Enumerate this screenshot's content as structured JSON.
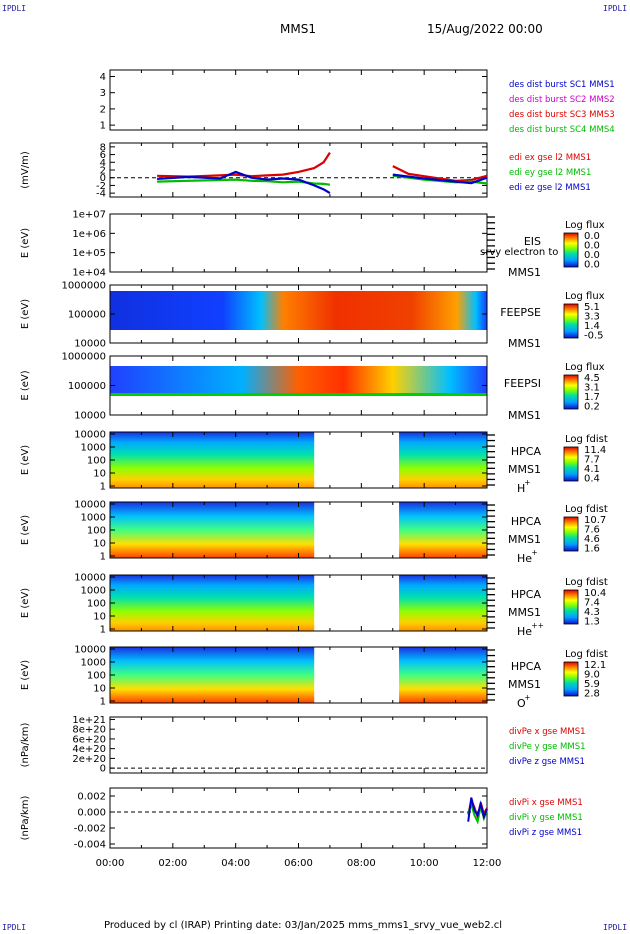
{
  "header": {
    "corner_left_top": "IPDLI",
    "corner_right_top": "IPDLI",
    "corner_left_bottom": "IPDLI",
    "corner_right_bottom": "IPDLI",
    "spacecraft": "MMS1",
    "datetime": "15/Aug/2022 00:00"
  },
  "footer": {
    "text": "Produced by cl (IRAP)   Printing date: 03/Jan/2025   mms_mms1_srvy_vue_web2.cl"
  },
  "colors": {
    "mms1": "#0000cc",
    "mms2": "#cc00cc",
    "mms3": "#dd0000",
    "mms4": "#00bb00",
    "red": "#dd0000",
    "green": "#00bb00",
    "blue": "#0000cc"
  },
  "chart_data": [
    {
      "type": "line",
      "panel": "dist",
      "yticks": [
        "1",
        "2",
        "3",
        "4"
      ],
      "ylim": [
        0.7,
        4.4
      ],
      "legend": [
        "des dist burst SC1 MMS1",
        "des dist burst SC2 MMS2",
        "des dist burst SC3 MMS3",
        "des dist burst SC4 MMS4"
      ]
    },
    {
      "type": "line",
      "panel": "efield",
      "ylabel": "(mV/m)",
      "yticks": [
        "-4",
        "-2",
        "0",
        "2",
        "4",
        "6",
        "8"
      ],
      "ylim": [
        -5,
        9
      ],
      "x_hours": [
        1.5,
        2.5,
        3.5,
        4.0,
        4.5,
        5.0,
        5.5,
        6.0,
        6.5,
        6.8,
        7.0,
        9.0,
        9.5,
        10.0,
        11.0,
        11.5,
        12.0
      ],
      "series": [
        {
          "name": "edi ex gse l2 MMS1",
          "values": [
            0.5,
            0.3,
            0.6,
            0.8,
            0.4,
            0.6,
            0.8,
            1.5,
            2.5,
            4.0,
            6.5,
            3.0,
            1.0,
            0.4,
            -0.8,
            -0.6,
            0.5
          ]
        },
        {
          "name": "edi ey gse l2 MMS1",
          "values": [
            -1.0,
            -0.8,
            -0.6,
            -0.5,
            -0.8,
            -0.9,
            -1.2,
            -1.0,
            -1.5,
            -1.6,
            -1.8,
            0.5,
            0.0,
            -0.5,
            -1.2,
            -1.0,
            -1.5
          ]
        },
        {
          "name": "edi ez gse l2 MMS1",
          "values": [
            -0.3,
            0.2,
            -0.2,
            1.5,
            0.0,
            -0.5,
            -0.2,
            -0.5,
            -2.0,
            -3.0,
            -4.0,
            0.8,
            0.3,
            -0.2,
            -1.0,
            -1.4,
            0.0
          ]
        }
      ]
    },
    {
      "type": "heatmap",
      "panel": "eis",
      "ylabel": "E (eV)",
      "yticks": [
        "1e+04",
        "1e+05",
        "1e+06",
        "1e+07"
      ],
      "labels": [
        "EIS",
        "MMS1"
      ],
      "stray_text": "srvy electron to",
      "colorbar": {
        "title": "Log flux",
        "ticks": [
          "0.0",
          "0.0",
          "0.0",
          "0.0"
        ]
      }
    },
    {
      "type": "heatmap",
      "panel": "feeps_e",
      "ylabel": "E (eV)",
      "yticks": [
        "10000",
        "100000",
        "1000000"
      ],
      "labels": [
        "FEEPSE",
        "MMS1"
      ],
      "colorbar": {
        "title": "Log flux",
        "ticks": [
          "5.1",
          "3.3",
          "1.4",
          "-0.5"
        ]
      }
    },
    {
      "type": "heatmap",
      "panel": "feeps_i",
      "ylabel": "E (eV)",
      "yticks": [
        "10000",
        "100000",
        "1000000"
      ],
      "labels": [
        "FEEPSI",
        "MMS1"
      ],
      "colorbar": {
        "title": "Log flux",
        "ticks": [
          "4.5",
          "3.1",
          "1.7",
          "0.2"
        ]
      }
    },
    {
      "type": "heatmap",
      "panel": "hpca_h",
      "ylabel": "E (eV)",
      "yticks": [
        "1",
        "10",
        "100",
        "1000",
        "10000"
      ],
      "labels": [
        "HPCA",
        "MMS1"
      ],
      "species": "H",
      "charge": "+",
      "data_gap": [
        6.5,
        9.2
      ],
      "colorbar": {
        "title": "Log fdist",
        "ticks": [
          "11.4",
          "7.7",
          "4.1",
          "0.4"
        ]
      }
    },
    {
      "type": "heatmap",
      "panel": "hpca_he1",
      "ylabel": "E (eV)",
      "yticks": [
        "1",
        "10",
        "100",
        "1000",
        "10000"
      ],
      "labels": [
        "HPCA",
        "MMS1"
      ],
      "species": "He",
      "charge": "+",
      "data_gap": [
        6.5,
        9.2
      ],
      "colorbar": {
        "title": "Log fdist",
        "ticks": [
          "10.7",
          "7.6",
          "4.6",
          "1.6"
        ]
      }
    },
    {
      "type": "heatmap",
      "panel": "hpca_he2",
      "ylabel": "E (eV)",
      "yticks": [
        "1",
        "10",
        "100",
        "1000",
        "10000"
      ],
      "labels": [
        "HPCA",
        "MMS1"
      ],
      "species": "He",
      "charge": "++",
      "data_gap": [
        6.5,
        9.2
      ],
      "colorbar": {
        "title": "Log fdist",
        "ticks": [
          "10.4",
          "7.4",
          "4.3",
          "1.3"
        ]
      }
    },
    {
      "type": "heatmap",
      "panel": "hpca_o",
      "ylabel": "E (eV)",
      "yticks": [
        "1",
        "10",
        "100",
        "1000",
        "10000"
      ],
      "labels": [
        "HPCA",
        "MMS1"
      ],
      "species": "O",
      "charge": "+",
      "data_gap": [
        6.5,
        9.2
      ],
      "colorbar": {
        "title": "Log fdist",
        "ticks": [
          "12.1",
          "9.0",
          "5.9",
          "2.8"
        ]
      }
    },
    {
      "type": "line",
      "panel": "divpe",
      "ylabel": "(nPa/km)",
      "yticks": [
        "0",
        "2e+20",
        "4e+20",
        "6e+20",
        "8e+20",
        "1e+21"
      ],
      "ylim": [
        -0.1,
        1.05
      ],
      "legend": [
        "divPe x gse MMS1",
        "divPe y gse MMS1",
        "divPe z gse MMS1"
      ]
    },
    {
      "type": "line",
      "panel": "divpi",
      "ylabel": "(nPa/km)",
      "yticks": [
        "-0.004",
        "-0.002",
        "0.000",
        "0.002"
      ],
      "ylim": [
        -0.0045,
        0.003
      ],
      "x_hours": [
        11.4,
        11.5,
        11.6,
        11.7,
        11.8,
        11.9,
        12.0
      ],
      "series": [
        {
          "name": "divPi x gse MMS1",
          "values": [
            -0.0003,
            0.0015,
            0.0006,
            -0.0006,
            0.0012,
            -0.0002,
            0.0005
          ]
        },
        {
          "name": "divPi y gse MMS1",
          "values": [
            -0.0002,
            0.001,
            -0.0004,
            -0.0012,
            0.0007,
            -0.0008,
            0.0002
          ]
        },
        {
          "name": "divPi z gse MMS1",
          "values": [
            -0.0012,
            0.0018,
            0.0002,
            -0.0004,
            0.001,
            -0.0006,
            0.0004
          ]
        }
      ]
    }
  ],
  "xaxis": {
    "ticks": [
      "00:00",
      "02:00",
      "04:00",
      "06:00",
      "08:00",
      "10:00",
      "12:00"
    ],
    "xlim": [
      0,
      12
    ]
  }
}
